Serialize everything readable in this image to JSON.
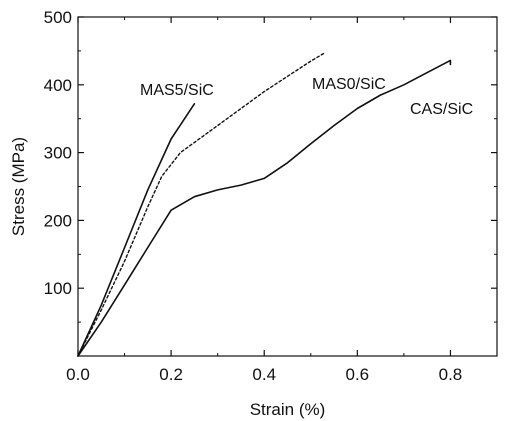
{
  "chart_data": {
    "type": "line",
    "title": "",
    "xlabel": "Strain (%)",
    "ylabel": "Stress (MPa)",
    "xlim": [
      0.0,
      0.9
    ],
    "ylim": [
      0,
      500
    ],
    "x_ticks": [
      "0.0",
      "0.2",
      "0.4",
      "0.6",
      "0.8"
    ],
    "y_ticks": [
      "100",
      "200",
      "300",
      "400",
      "500"
    ],
    "grid": false,
    "legend": "none (inline series labels)",
    "series": [
      {
        "name": "MAS5/SiC",
        "line_style": "solid",
        "color": "#111111",
        "x": [
          0.0,
          0.05,
          0.1,
          0.15,
          0.2,
          0.25
        ],
        "y": [
          0,
          75,
          160,
          245,
          320,
          372
        ]
      },
      {
        "name": "MAS0/SiC",
        "line_style": "dotted",
        "color": "#111111",
        "x": [
          0.0,
          0.05,
          0.1,
          0.15,
          0.18,
          0.22,
          0.3,
          0.4,
          0.5,
          0.53
        ],
        "y": [
          0,
          68,
          140,
          220,
          265,
          300,
          340,
          390,
          435,
          447
        ]
      },
      {
        "name": "CAS/SiC",
        "line_style": "solid",
        "color": "#111111",
        "x": [
          0.0,
          0.05,
          0.1,
          0.15,
          0.2,
          0.25,
          0.3,
          0.35,
          0.4,
          0.45,
          0.5,
          0.55,
          0.6,
          0.65,
          0.7,
          0.75,
          0.8,
          0.8
        ],
        "y": [
          0,
          50,
          105,
          160,
          215,
          235,
          245,
          252,
          262,
          285,
          313,
          340,
          365,
          385,
          400,
          418,
          436,
          430
        ]
      }
    ]
  }
}
